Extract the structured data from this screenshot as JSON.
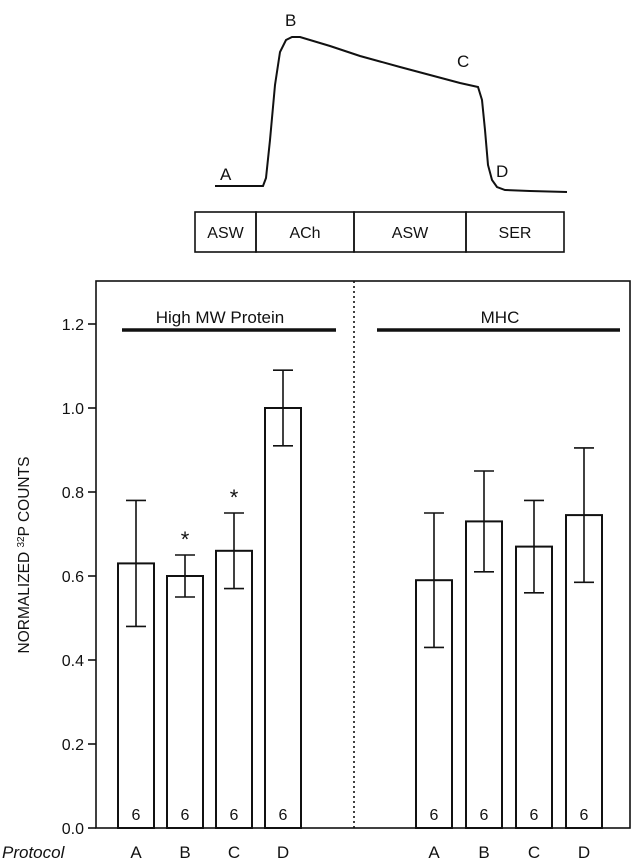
{
  "trace": {
    "points": [
      {
        "label": "A"
      },
      {
        "label": "B"
      },
      {
        "label": "C"
      },
      {
        "label": "D"
      }
    ],
    "protocol_boxes": [
      "ASW",
      "ACh",
      "ASW",
      "SER"
    ]
  },
  "chart_data": {
    "type": "bar",
    "ylabel_pre": "NORMALIZED ",
    "ylabel_sup": "32",
    "ylabel_post": "P COUNTS",
    "ylim": [
      0,
      1.3
    ],
    "yticks": [
      "0.0",
      "0.2",
      "0.4",
      "0.6",
      "0.8",
      "1.0",
      "1.2"
    ],
    "x_axis_label": "Protocol",
    "panels": [
      {
        "title": "High MW Protein",
        "categories": [
          "A",
          "B",
          "C",
          "D"
        ],
        "values": [
          0.63,
          0.6,
          0.66,
          1.0
        ],
        "errors": [
          0.15,
          0.05,
          0.09,
          0.09
        ],
        "n": [
          "6",
          "6",
          "6",
          "6"
        ],
        "significance": [
          "",
          "*",
          "*",
          ""
        ]
      },
      {
        "title": "MHC",
        "categories": [
          "A",
          "B",
          "C",
          "D"
        ],
        "values": [
          0.59,
          0.73,
          0.67,
          0.745
        ],
        "errors": [
          0.16,
          0.12,
          0.11,
          0.16
        ],
        "n": [
          "6",
          "6",
          "6",
          "6"
        ],
        "significance": [
          "",
          "",
          "",
          ""
        ]
      }
    ]
  }
}
